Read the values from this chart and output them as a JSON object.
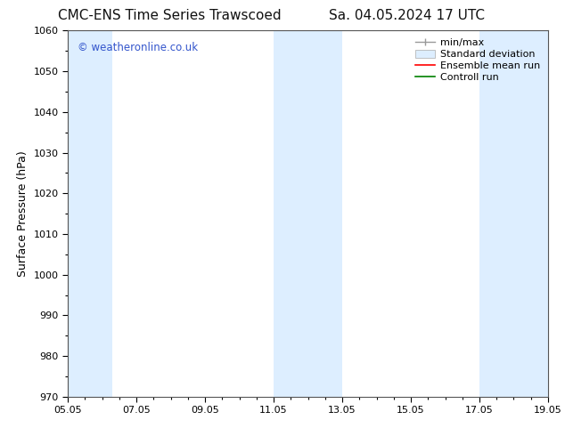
{
  "title_left": "CMC-ENS Time Series Trawscoed",
  "title_right": "Sa. 04.05.2024 17 UTC",
  "ylabel": "Surface Pressure (hPa)",
  "xlim_start": 0,
  "xlim_end": 14,
  "ylim": [
    970,
    1060
  ],
  "yticks": [
    970,
    980,
    990,
    1000,
    1010,
    1020,
    1030,
    1040,
    1050,
    1060
  ],
  "xtick_labels": [
    "05.05",
    "07.05",
    "09.05",
    "11.05",
    "13.05",
    "15.05",
    "17.05",
    "19.05"
  ],
  "xtick_positions": [
    0,
    2,
    4,
    6,
    8,
    10,
    12,
    14
  ],
  "background_color": "#ffffff",
  "plot_bg_color": "#ffffff",
  "shaded_bands": [
    {
      "x_start": 0,
      "x_end": 1.3,
      "color": "#ddeeff"
    },
    {
      "x_start": 6,
      "x_end": 8,
      "color": "#ddeeff"
    },
    {
      "x_start": 12,
      "x_end": 14,
      "color": "#ddeeff"
    }
  ],
  "legend_labels": [
    "min/max",
    "Standard deviation",
    "Ensemble mean run",
    "Controll run"
  ],
  "legend_colors": [
    "#aaaaaa",
    "#c8dce8",
    "#ff0000",
    "#008000"
  ],
  "watermark": "© weatheronline.co.uk",
  "watermark_color": "#3355cc",
  "title_fontsize": 11,
  "axis_label_fontsize": 9,
  "tick_fontsize": 8,
  "legend_fontsize": 8
}
